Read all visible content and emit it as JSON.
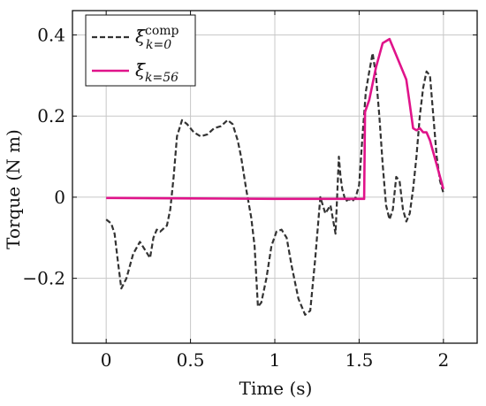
{
  "chart_data": {
    "type": "line",
    "title": "",
    "xlabel": "Time (s)",
    "ylabel": "Torque (N m)",
    "xlim": [
      -0.2,
      2.2
    ],
    "ylim": [
      -0.36,
      0.46
    ],
    "grid": true,
    "legend_position": "top-left",
    "x_ticks": [
      0,
      0.5,
      1,
      1.5,
      2
    ],
    "x_tick_labels": [
      "0",
      "0.5",
      "1",
      "1.5",
      "2"
    ],
    "y_ticks": [
      -0.2,
      0,
      0.2,
      0.4
    ],
    "y_tick_labels": [
      "−0.2",
      "0",
      "0.2",
      "0.4"
    ],
    "series": [
      {
        "name": "ξ̄",
        "name_sup": "comp",
        "name_sub": "k=0",
        "color": "#333333",
        "style": "dashed",
        "x": [
          0,
          0.03,
          0.05,
          0.07,
          0.09,
          0.12,
          0.16,
          0.2,
          0.23,
          0.26,
          0.28,
          0.3,
          0.32,
          0.36,
          0.38,
          0.4,
          0.42,
          0.45,
          0.48,
          0.52,
          0.56,
          0.6,
          0.64,
          0.68,
          0.72,
          0.75,
          0.78,
          0.8,
          0.83,
          0.86,
          0.88,
          0.9,
          0.92,
          0.95,
          0.98,
          1.01,
          1.04,
          1.07,
          1.1,
          1.14,
          1.18,
          1.21,
          1.24,
          1.27,
          1.3,
          1.33,
          1.36,
          1.38,
          1.39,
          1.4,
          1.42,
          1.44,
          1.46,
          1.48,
          1.5,
          1.52,
          1.54,
          1.56,
          1.58,
          1.6,
          1.62,
          1.64,
          1.66,
          1.68,
          1.7,
          1.72,
          1.74,
          1.76,
          1.78,
          1.8,
          1.82,
          1.84,
          1.86,
          1.88,
          1.9,
          1.92,
          1.94,
          1.96,
          1.98,
          2.0
        ],
        "y": [
          -0.055,
          -0.065,
          -0.09,
          -0.16,
          -0.225,
          -0.2,
          -0.14,
          -0.11,
          -0.13,
          -0.15,
          -0.1,
          -0.08,
          -0.085,
          -0.07,
          -0.03,
          0.05,
          0.15,
          0.19,
          0.18,
          0.16,
          0.15,
          0.155,
          0.17,
          0.175,
          0.19,
          0.18,
          0.14,
          0.1,
          0.02,
          -0.05,
          -0.12,
          -0.27,
          -0.26,
          -0.2,
          -0.12,
          -0.085,
          -0.08,
          -0.1,
          -0.17,
          -0.25,
          -0.29,
          -0.28,
          -0.15,
          0.0,
          -0.04,
          -0.02,
          -0.09,
          0.1,
          0.05,
          0.02,
          -0.01,
          -0.005,
          -0.01,
          0.0,
          0.03,
          0.15,
          0.26,
          0.31,
          0.355,
          0.3,
          0.2,
          0.08,
          -0.02,
          -0.055,
          -0.03,
          0.05,
          0.04,
          -0.03,
          -0.06,
          -0.04,
          0.02,
          0.1,
          0.2,
          0.27,
          0.31,
          0.3,
          0.2,
          0.1,
          0.04,
          0.01
        ]
      },
      {
        "name": "ξ̄",
        "name_sup": "",
        "name_sub": "k=56",
        "color": "#e0138a",
        "style": "solid",
        "x": [
          0,
          0.5,
          1.0,
          1.4,
          1.5,
          1.53,
          1.535,
          1.56,
          1.6,
          1.64,
          1.68,
          1.72,
          1.76,
          1.78,
          1.8,
          1.82,
          1.84,
          1.86,
          1.88,
          1.9,
          1.92,
          1.94,
          1.96,
          1.98,
          2.0
        ],
        "y": [
          -0.002,
          -0.003,
          -0.004,
          -0.004,
          -0.004,
          -0.004,
          0.21,
          0.24,
          0.32,
          0.38,
          0.39,
          0.35,
          0.31,
          0.29,
          0.23,
          0.17,
          0.165,
          0.17,
          0.16,
          0.16,
          0.14,
          0.11,
          0.08,
          0.05,
          0.02
        ]
      }
    ]
  }
}
